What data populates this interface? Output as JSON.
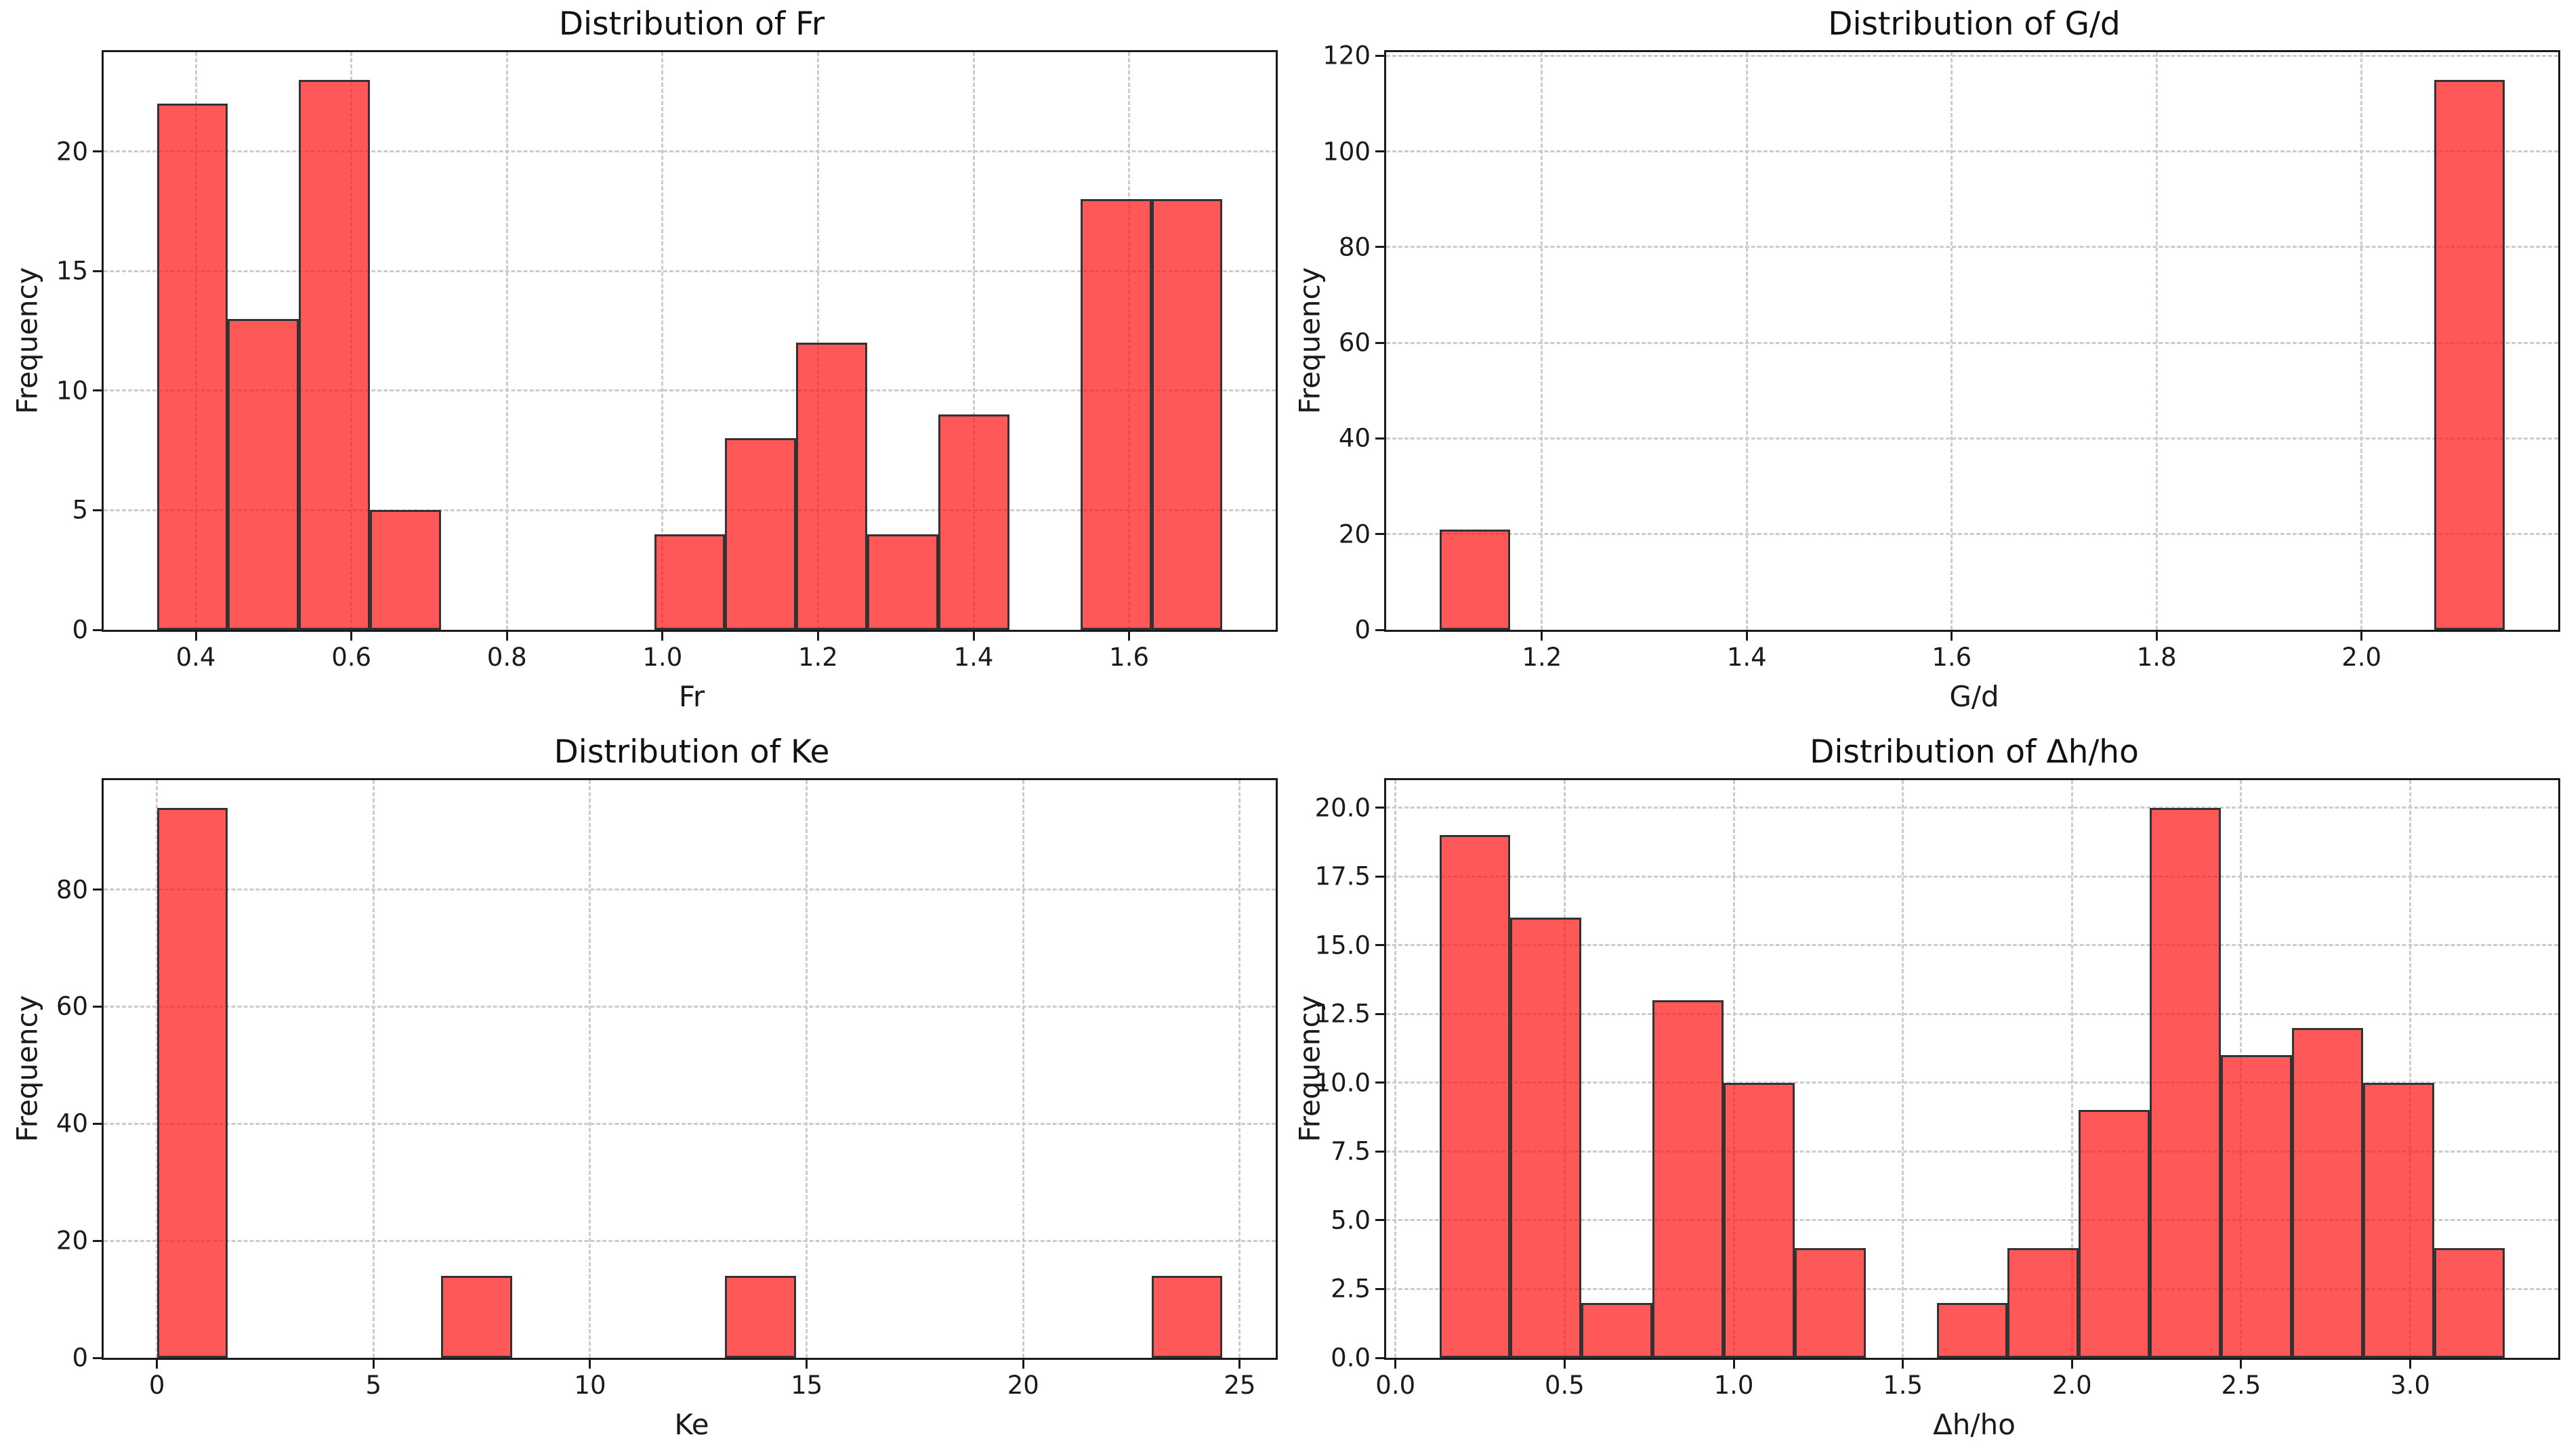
{
  "figure": {
    "background": "#ffffff",
    "grid_color": "#cccccc",
    "axis_color": "#1a1a1a",
    "bar_fill": "#ff4d4d",
    "bar_edge": "#333333"
  },
  "chart_data": [
    {
      "type": "bar",
      "subtype": "histogram",
      "title": "Distribution of Fr",
      "xlabel": "Fr",
      "ylabel": "Frequency",
      "bin_start": 0.35,
      "bin_width": 0.091333,
      "counts": [
        22,
        13,
        23,
        5,
        0,
        0,
        0,
        4,
        8,
        12,
        4,
        9,
        0,
        18,
        18
      ],
      "xlim": [
        0.2815,
        1.7885
      ],
      "ylim": [
        0,
        24.15
      ],
      "xticks": {
        "values": [
          0.4,
          0.6,
          0.8,
          1.0,
          1.2,
          1.4,
          1.6
        ],
        "labels": [
          "0.4",
          "0.6",
          "0.8",
          "1.0",
          "1.2",
          "1.4",
          "1.6"
        ]
      },
      "yticks": {
        "values": [
          0,
          5,
          10,
          15,
          20
        ],
        "labels": [
          "0",
          "5",
          "10",
          "15",
          "20"
        ]
      },
      "grid": true,
      "legend": false
    },
    {
      "type": "bar",
      "subtype": "histogram",
      "title": "Distribution of G/d",
      "xlabel": "G/d",
      "ylabel": "Frequency",
      "bin_start": 1.1,
      "bin_width": 0.069333,
      "counts": [
        21,
        0,
        0,
        0,
        0,
        0,
        0,
        0,
        0,
        0,
        0,
        0,
        0,
        0,
        115
      ],
      "xlim": [
        1.048,
        2.192
      ],
      "ylim": [
        0,
        120.75
      ],
      "xticks": {
        "values": [
          1.2,
          1.4,
          1.6,
          1.8,
          2.0
        ],
        "labels": [
          "1.2",
          "1.4",
          "1.6",
          "1.8",
          "2.0"
        ]
      },
      "yticks": {
        "values": [
          0,
          20,
          40,
          60,
          80,
          100,
          120
        ],
        "labels": [
          "0",
          "20",
          "40",
          "60",
          "80",
          "100",
          "120"
        ]
      },
      "grid": true,
      "legend": false
    },
    {
      "type": "bar",
      "subtype": "histogram",
      "title": "Distribution of Ke",
      "xlabel": "Ke",
      "ylabel": "Frequency",
      "bin_start": 0,
      "bin_width": 1.64,
      "counts": [
        94,
        0,
        0,
        0,
        14,
        0,
        0,
        0,
        14,
        0,
        0,
        0,
        0,
        0,
        14
      ],
      "xlim": [
        -1.23,
        25.83
      ],
      "ylim": [
        0,
        98.7
      ],
      "xticks": {
        "values": [
          0,
          5,
          10,
          15,
          20,
          25
        ],
        "labels": [
          "0",
          "5",
          "10",
          "15",
          "20",
          "25"
        ]
      },
      "yticks": {
        "values": [
          0,
          20,
          40,
          60,
          80
        ],
        "labels": [
          "0",
          "20",
          "40",
          "60",
          "80"
        ]
      },
      "grid": true,
      "legend": false
    },
    {
      "type": "bar",
      "subtype": "histogram",
      "title": "Distribution of Δh/ho",
      "xlabel": "Δh/ho",
      "ylabel": "Frequency",
      "bin_start": 0.13,
      "bin_width": 0.21,
      "counts": [
        19,
        16,
        2,
        13,
        10,
        4,
        0,
        2,
        4,
        9,
        20,
        11,
        12,
        10,
        4
      ],
      "xlim": [
        -0.0275,
        3.4375
      ],
      "ylim": [
        0,
        21
      ],
      "xticks": {
        "values": [
          0.0,
          0.5,
          1.0,
          1.5,
          2.0,
          2.5,
          3.0
        ],
        "labels": [
          "0.0",
          "0.5",
          "1.0",
          "1.5",
          "2.0",
          "2.5",
          "3.0"
        ]
      },
      "yticks": {
        "values": [
          0,
          2.5,
          5,
          7.5,
          10,
          12.5,
          15,
          17.5,
          20
        ],
        "labels": [
          "0.0",
          "2.5",
          "5.0",
          "7.5",
          "10.0",
          "12.5",
          "15.0",
          "17.5",
          "20.0"
        ]
      },
      "grid": true,
      "legend": false
    }
  ]
}
